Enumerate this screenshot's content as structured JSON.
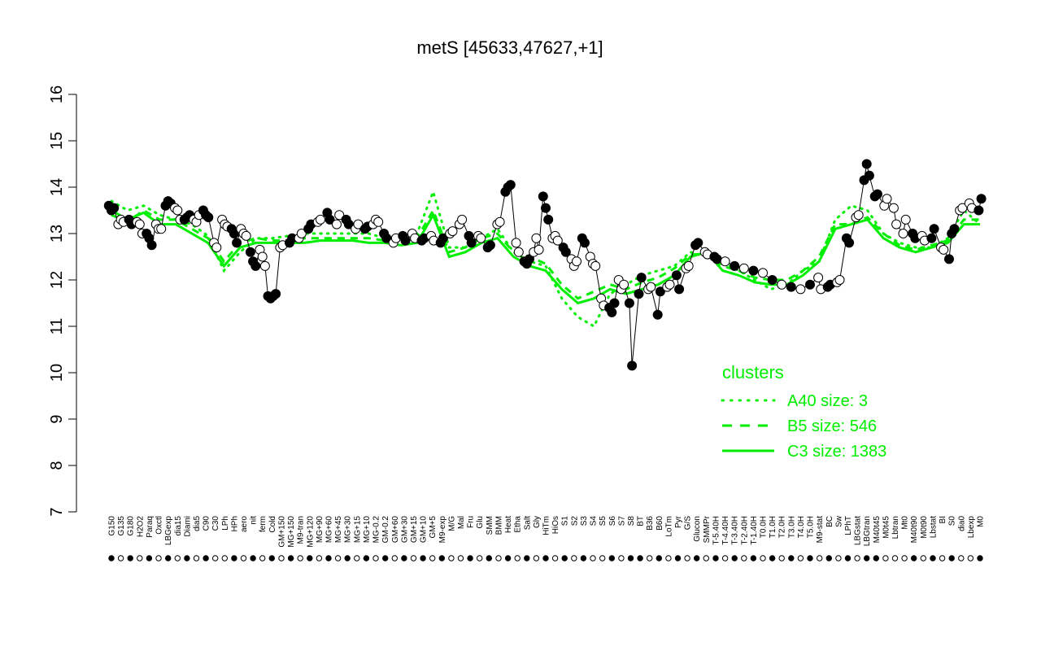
{
  "chart_data": {
    "type": "line",
    "title": "metS [45633,47627,+1]",
    "xlabel": "",
    "ylabel": "",
    "ylim": [
      7,
      16
    ],
    "yticks": [
      7,
      8,
      9,
      10,
      11,
      12,
      13,
      14,
      15,
      16
    ],
    "grid": false,
    "x_tick_labels": [
      "G150",
      "G135",
      "G180",
      "H2O2",
      "Paraq",
      "Oxctl",
      "LBGexp",
      "dia15",
      "Diami",
      "dia5",
      "C90",
      "C30",
      "LPh",
      "HPh",
      "aero",
      "nit",
      "ferm",
      "Cold",
      "GM+150",
      "MG+150",
      "M9-tran",
      "MG+120",
      "MG+90",
      "MG+60",
      "MG+45",
      "MG+30",
      "MG+15",
      "MG+10",
      "MG-0.2",
      "GM-0.2",
      "GM+60",
      "GM+30",
      "GM+15",
      "GM+10",
      "GM+5",
      "M9-exp",
      "M/G",
      "Mal",
      "Fru",
      "Glu",
      "SMM",
      "BMM",
      "Heat",
      "Etha",
      "Salt",
      "Gly",
      "HiTm",
      "HiOs",
      "S1",
      "S2",
      "S3",
      "S4",
      "S5",
      "S6",
      "S7",
      "S8",
      "BT",
      "B36",
      "B60",
      "LoTm",
      "Pyr",
      "G/S",
      "Glucon",
      "SMMPr",
      "T-5.40H",
      "T-4.40H",
      "T-3.40H",
      "T-2.40H",
      "T-1.40H",
      "T0.0H",
      "T1.0H",
      "T2.0H",
      "T3.0H",
      "T4.0H",
      "T5.0H",
      "M9-stat",
      "BC",
      "Sw",
      "LPhT",
      "LBGstat",
      "LBGtran",
      "M40t45",
      "M0t45",
      "Lbtran",
      "Mt0",
      "M40t90",
      "M0t90",
      "Lbstat",
      "BI",
      "S0",
      "dia0",
      "Lbexp",
      "M0"
    ],
    "legend": {
      "title": "clusters",
      "placement": "right",
      "entries": [
        {
          "label": "A40 size: 3",
          "style": "dotted"
        },
        {
          "label": "B5 size: 546",
          "style": "dashed"
        },
        {
          "label": "C3 size: 1383",
          "style": "solid"
        }
      ]
    },
    "colors": {
      "points": "#000000",
      "line": "#000000",
      "clusters": "#00ee00",
      "title": "#000000"
    },
    "point_groups": [
      {
        "label": "G150",
        "filled": true,
        "values": [
          13.6,
          13.5,
          13.55
        ]
      },
      {
        "label": "G135",
        "filled": false,
        "values": [
          13.2,
          13.3,
          13.25
        ]
      },
      {
        "label": "G180",
        "filled": true,
        "values": [
          13.3,
          13.2
        ]
      },
      {
        "label": "H2O2",
        "filled": false,
        "values": [
          13.25,
          13.2,
          13.0
        ]
      },
      {
        "label": "Paraq",
        "filled": true,
        "values": [
          13.0,
          12.9,
          12.75
        ]
      },
      {
        "label": "Oxctl",
        "filled": false,
        "values": [
          13.2,
          13.1,
          13.1
        ]
      },
      {
        "label": "LBGexp",
        "filled": true,
        "values": [
          13.6,
          13.7,
          13.65
        ]
      },
      {
        "label": "dia15",
        "filled": false,
        "values": [
          13.55,
          13.5,
          13.3
        ]
      },
      {
        "label": "Diami",
        "filled": true,
        "values": [
          13.3,
          13.35,
          13.4
        ]
      },
      {
        "label": "dia5",
        "filled": false,
        "values": [
          13.3,
          13.25,
          13.4
        ]
      },
      {
        "label": "C90",
        "filled": true,
        "values": [
          13.5,
          13.4,
          13.35
        ]
      },
      {
        "label": "C30",
        "filled": false,
        "values": [
          12.8,
          12.7
        ]
      },
      {
        "label": "LPh",
        "filled": false,
        "values": [
          13.3,
          13.2,
          13.15
        ]
      },
      {
        "label": "HPh",
        "filled": true,
        "values": [
          13.1,
          13.0,
          12.8
        ]
      },
      {
        "label": "aero",
        "filled": false,
        "values": [
          13.1,
          13.0,
          12.95
        ]
      },
      {
        "label": "nit",
        "filled": true,
        "values": [
          12.6,
          12.4,
          12.3
        ]
      },
      {
        "label": "ferm",
        "filled": false,
        "values": [
          12.65,
          12.5,
          12.3
        ]
      },
      {
        "label": "Cold",
        "filled": true,
        "values": [
          11.65,
          11.6,
          11.65,
          11.7
        ]
      },
      {
        "label": "GM+150",
        "filled": false,
        "values": [
          12.7,
          12.75
        ]
      },
      {
        "label": "MG+150",
        "filled": true,
        "values": [
          12.8,
          12.9
        ]
      },
      {
        "label": "M9-tran",
        "filled": false,
        "values": [
          12.9,
          13.0
        ]
      },
      {
        "label": "MG+120",
        "filled": true,
        "values": [
          13.1,
          13.2
        ]
      },
      {
        "label": "MG+90",
        "filled": false,
        "values": [
          13.25,
          13.3
        ]
      },
      {
        "label": "MG+60",
        "filled": true,
        "values": [
          13.45,
          13.3
        ]
      },
      {
        "label": "MG+45",
        "filled": false,
        "values": [
          13.2,
          13.4
        ]
      },
      {
        "label": "MG+30",
        "filled": true,
        "values": [
          13.3,
          13.2
        ]
      },
      {
        "label": "MG+15",
        "filled": false,
        "values": [
          13.1,
          13.2
        ]
      },
      {
        "label": "MG+10",
        "filled": true,
        "values": [
          13.1,
          13.15
        ]
      },
      {
        "label": "MG-0.2",
        "filled": false,
        "values": [
          13.2,
          13.3,
          13.25
        ]
      },
      {
        "label": "GM-0.2",
        "filled": true,
        "values": [
          13.0,
          12.9
        ]
      },
      {
        "label": "GM+60",
        "filled": false,
        "values": [
          12.8,
          12.9
        ]
      },
      {
        "label": "GM+30",
        "filled": true,
        "values": [
          12.95,
          12.85
        ]
      },
      {
        "label": "GM+15",
        "filled": false,
        "values": [
          13.0,
          12.9
        ]
      },
      {
        "label": "GM+10",
        "filled": true,
        "values": [
          12.85,
          12.9
        ]
      },
      {
        "label": "GM+5",
        "filled": false,
        "values": [
          12.95,
          12.85
        ]
      },
      {
        "label": "M9-exp",
        "filled": true,
        "values": [
          12.8,
          12.9
        ]
      },
      {
        "label": "M/G",
        "filled": false,
        "values": [
          13.0,
          13.05
        ]
      },
      {
        "label": "Mal",
        "filled": false,
        "values": [
          13.2,
          13.3
        ]
      },
      {
        "label": "Fru",
        "filled": true,
        "values": [
          12.95,
          12.8
        ]
      },
      {
        "label": "Glu",
        "filled": false,
        "values": [
          12.95,
          12.9
        ]
      },
      {
        "label": "SMM",
        "filled": true,
        "values": [
          12.7,
          12.75
        ]
      },
      {
        "label": "BMM",
        "filled": false,
        "values": [
          13.2,
          13.25
        ]
      },
      {
        "label": "Heat",
        "filled": true,
        "values": [
          13.9,
          14.0,
          14.05
        ]
      },
      {
        "label": "Etha",
        "filled": false,
        "values": [
          12.8,
          12.6
        ]
      },
      {
        "label": "Salt",
        "filled": true,
        "values": [
          12.4,
          12.35,
          12.45
        ]
      },
      {
        "label": "Gly",
        "filled": false,
        "values": [
          12.6,
          12.9,
          12.65
        ]
      },
      {
        "label": "HiTm",
        "filled": true,
        "values": [
          13.8,
          13.55,
          13.3
        ]
      },
      {
        "label": "HiOs",
        "filled": false,
        "values": [
          12.9,
          12.95,
          12.85
        ]
      },
      {
        "label": "S1",
        "filled": true,
        "values": [
          12.7,
          12.6
        ]
      },
      {
        "label": "S2",
        "filled": false,
        "values": [
          12.45,
          12.3,
          12.4
        ]
      },
      {
        "label": "S3",
        "filled": true,
        "values": [
          12.9,
          12.8
        ]
      },
      {
        "label": "S4",
        "filled": false,
        "values": [
          12.5,
          12.35,
          12.3
        ]
      },
      {
        "label": "S5",
        "filled": false,
        "values": [
          11.6,
          11.45
        ]
      },
      {
        "label": "S6",
        "filled": true,
        "values": [
          11.4,
          11.3,
          11.5
        ]
      },
      {
        "label": "S7",
        "filled": false,
        "values": [
          12.0,
          11.8,
          11.9
        ]
      },
      {
        "label": "S8",
        "filled": true,
        "values": [
          11.5,
          10.15
        ]
      },
      {
        "label": "BT",
        "filled": true,
        "values": [
          11.7,
          12.05
        ]
      },
      {
        "label": "B36",
        "filled": false,
        "values": [
          11.8,
          11.85
        ]
      },
      {
        "label": "B60",
        "filled": true,
        "values": [
          11.25,
          11.75
        ]
      },
      {
        "label": "LoTm",
        "filled": false,
        "values": [
          11.85,
          11.9
        ]
      },
      {
        "label": "Pyr",
        "filled": true,
        "values": [
          12.1,
          11.8
        ]
      },
      {
        "label": "G/S",
        "filled": false,
        "values": [
          12.25,
          12.3
        ]
      },
      {
        "label": "Glucon",
        "filled": true,
        "values": [
          12.75,
          12.8
        ]
      },
      {
        "label": "SMMPr",
        "filled": false,
        "values": [
          12.6,
          12.55
        ]
      },
      {
        "label": "T-5.40H",
        "filled": true,
        "values": [
          12.5,
          12.45
        ]
      },
      {
        "label": "T-4.40H",
        "filled": false,
        "values": [
          12.4
        ]
      },
      {
        "label": "T-3.40H",
        "filled": true,
        "values": [
          12.3
        ]
      },
      {
        "label": "T-2.40H",
        "filled": false,
        "values": [
          12.25
        ]
      },
      {
        "label": "T-1.40H",
        "filled": true,
        "values": [
          12.2
        ]
      },
      {
        "label": "T0.0H",
        "filled": false,
        "values": [
          12.15
        ]
      },
      {
        "label": "T1.0H",
        "filled": true,
        "values": [
          12.0
        ]
      },
      {
        "label": "T2.0H",
        "filled": false,
        "values": [
          11.9
        ]
      },
      {
        "label": "T3.0H",
        "filled": true,
        "values": [
          11.85
        ]
      },
      {
        "label": "T4.0H",
        "filled": false,
        "values": [
          11.8
        ]
      },
      {
        "label": "T5.0H",
        "filled": true,
        "values": [
          11.9
        ]
      },
      {
        "label": "M9-stat",
        "filled": false,
        "values": [
          12.05,
          11.8
        ]
      },
      {
        "label": "BC",
        "filled": true,
        "values": [
          11.85,
          11.9
        ]
      },
      {
        "label": "Sw",
        "filled": false,
        "values": [
          11.95,
          12.0
        ]
      },
      {
        "label": "LPhT",
        "filled": true,
        "values": [
          12.9,
          12.8
        ]
      },
      {
        "label": "LBGstat",
        "filled": false,
        "values": [
          13.35,
          13.4
        ]
      },
      {
        "label": "LBGtran",
        "filled": true,
        "values": [
          14.15,
          14.5,
          14.25
        ]
      },
      {
        "label": "M40t45",
        "filled": true,
        "values": [
          13.8,
          13.85
        ]
      },
      {
        "label": "M0t45",
        "filled": false,
        "values": [
          13.6,
          13.75
        ]
      },
      {
        "label": "Lbtran",
        "filled": false,
        "values": [
          13.55,
          13.2
        ]
      },
      {
        "label": "Mt0",
        "filled": false,
        "values": [
          13.0,
          13.3
        ]
      },
      {
        "label": "M40t90",
        "filled": true,
        "values": [
          13.0,
          12.9
        ]
      },
      {
        "label": "M0t90",
        "filled": false,
        "values": [
          12.95,
          12.85
        ]
      },
      {
        "label": "Lbstat",
        "filled": true,
        "values": [
          12.9,
          13.1
        ]
      },
      {
        "label": "BI",
        "filled": false,
        "values": [
          12.7,
          12.65
        ]
      },
      {
        "label": "S0",
        "filled": true,
        "values": [
          12.45,
          13.0,
          13.1
        ]
      },
      {
        "label": "dia0",
        "filled": false,
        "values": [
          13.5,
          13.55
        ]
      },
      {
        "label": "Lbexp",
        "filled": false,
        "values": [
          13.65,
          13.55
        ]
      },
      {
        "label": "M0",
        "filled": true,
        "values": [
          13.5,
          13.75
        ]
      }
    ],
    "cluster_lines": {
      "B5": [
        13.4,
        13.25,
        13.5,
        13.3,
        13.3,
        13.1,
        12.9,
        12.4,
        12.8,
        12.9,
        12.85,
        12.85,
        12.9,
        12.9,
        12.9,
        12.9,
        12.9,
        12.85,
        12.8,
        12.9,
        13.5,
        12.6,
        12.7,
        12.9,
        13.0,
        12.6,
        12.5,
        12.35,
        11.9,
        11.6,
        11.75,
        11.9,
        11.8,
        11.95,
        12.05,
        12.25,
        12.55,
        12.55,
        12.3,
        12.2,
        12.05,
        12.0,
        12.0,
        12.2,
        12.5,
        13.2,
        13.2,
        13.35,
        13.0,
        12.75,
        12.65,
        12.75,
        12.85,
        13.3,
        13.3
      ],
      "C3": [
        13.5,
        13.3,
        13.45,
        13.2,
        13.2,
        13.0,
        12.8,
        12.3,
        12.7,
        12.8,
        12.8,
        12.8,
        12.8,
        12.85,
        12.85,
        12.85,
        12.8,
        12.8,
        12.75,
        12.8,
        13.4,
        12.5,
        12.6,
        12.8,
        12.9,
        12.5,
        12.3,
        12.2,
        11.8,
        11.5,
        11.6,
        11.8,
        11.7,
        11.8,
        11.9,
        12.1,
        12.5,
        12.6,
        12.2,
        12.1,
        11.95,
        11.9,
        11.9,
        12.1,
        12.4,
        13.1,
        13.2,
        13.3,
        12.9,
        12.7,
        12.6,
        12.7,
        12.8,
        13.2,
        13.2
      ],
      "A40": [
        13.7,
        13.5,
        13.6,
        13.4,
        13.3,
        13.2,
        12.95,
        12.2,
        12.6,
        12.9,
        12.9,
        12.95,
        13.0,
        13.0,
        13.0,
        13.0,
        13.0,
        12.9,
        12.9,
        13.0,
        13.9,
        12.7,
        12.7,
        12.9,
        13.1,
        12.6,
        12.4,
        12.3,
        11.6,
        11.2,
        11.0,
        11.7,
        11.9,
        12.1,
        12.2,
        12.3,
        12.6,
        12.5,
        12.4,
        12.2,
        12.0,
        11.8,
        11.9,
        12.2,
        12.4,
        13.3,
        13.6,
        13.5,
        13.0,
        12.8,
        12.7,
        12.7,
        12.9,
        13.5,
        13.2
      ]
    }
  }
}
